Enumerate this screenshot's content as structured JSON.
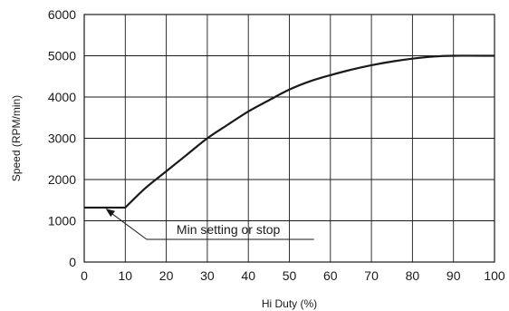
{
  "chart_data": {
    "type": "line",
    "title": "",
    "xlabel": "Hi Duty (%)",
    "ylabel": "Speed (RPM/min)",
    "xlim": [
      0,
      100
    ],
    "ylim": [
      0,
      6000
    ],
    "x_ticks": [
      0,
      10,
      20,
      30,
      40,
      50,
      60,
      70,
      80,
      90,
      100
    ],
    "y_ticks": [
      0,
      1000,
      2000,
      3000,
      4000,
      5000,
      6000
    ],
    "grid": true,
    "series": [
      {
        "x": [
          0,
          10,
          15,
          20,
          25,
          30,
          35,
          40,
          45,
          50,
          55,
          60,
          65,
          70,
          75,
          80,
          85,
          90,
          100
        ],
        "y": [
          1320,
          1320,
          1800,
          2200,
          2600,
          3000,
          3330,
          3650,
          3920,
          4180,
          4380,
          4530,
          4660,
          4770,
          4860,
          4930,
          4980,
          5000,
          5000
        ]
      }
    ],
    "annotations": [
      {
        "text": "Min setting or stop",
        "target_x": 5,
        "target_y": 1320
      }
    ]
  }
}
